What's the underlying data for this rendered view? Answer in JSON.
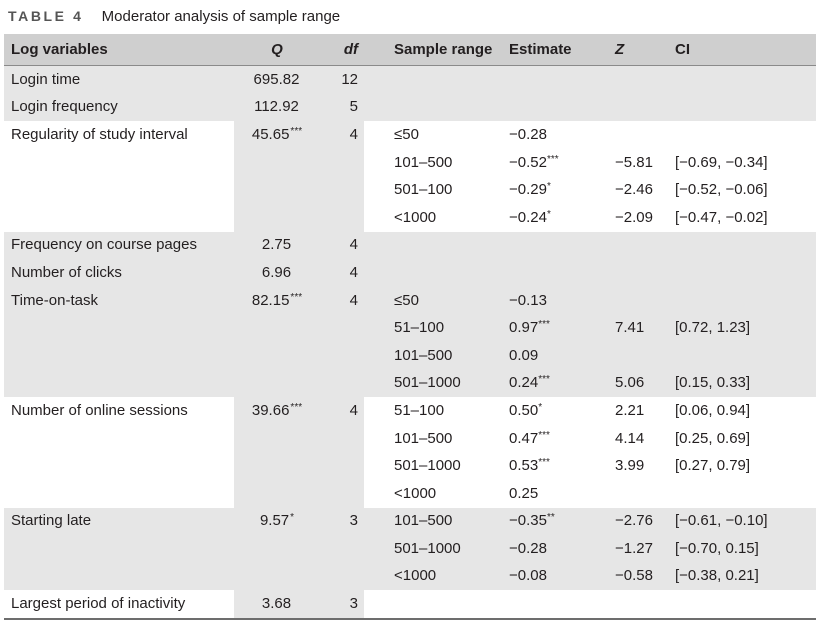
{
  "caption": {
    "label": "TABLE 4",
    "title": "Moderator analysis of sample range"
  },
  "columns": [
    "Log variables",
    "Q",
    "df",
    "Sample range",
    "Estimate",
    "Z",
    "CI"
  ],
  "rows": [
    {
      "variable": "Login time",
      "q": "695.82",
      "q_sig": "",
      "df": "12",
      "range": "",
      "estimate": "",
      "est_sig": "",
      "z": "",
      "ci": "",
      "shade": "full"
    },
    {
      "variable": "Login frequency",
      "q": "112.92",
      "q_sig": "",
      "df": "5",
      "range": "",
      "estimate": "",
      "est_sig": "",
      "z": "",
      "ci": "",
      "shade": "full"
    },
    {
      "variable": "Regularity of study interval",
      "q": "45.65",
      "q_sig": "***",
      "df": "4",
      "range": "≤50",
      "estimate": "−0.28",
      "est_sig": "",
      "z": "",
      "ci": "",
      "shade": "qdf"
    },
    {
      "variable": "",
      "q": "",
      "q_sig": "",
      "df": "",
      "range": "101–500",
      "estimate": "−0.52",
      "est_sig": "***",
      "z": "−5.81",
      "ci": "[−0.69, −0.34]",
      "shade": "qdf"
    },
    {
      "variable": "",
      "q": "",
      "q_sig": "",
      "df": "",
      "range": "501–100",
      "estimate": "−0.29",
      "est_sig": "*",
      "z": "−2.46",
      "ci": "[−0.52, −0.06]",
      "shade": "qdf"
    },
    {
      "variable": "",
      "q": "",
      "q_sig": "",
      "df": "",
      "range": "<1000",
      "estimate": "−0.24",
      "est_sig": "*",
      "z": "−2.09",
      "ci": "[−0.47, −0.02]",
      "shade": "qdf"
    },
    {
      "variable": "Frequency on course pages",
      "q": "2.75",
      "q_sig": "",
      "df": "4",
      "range": "",
      "estimate": "",
      "est_sig": "",
      "z": "",
      "ci": "",
      "shade": "full"
    },
    {
      "variable": "Number of clicks",
      "q": "6.96",
      "q_sig": "",
      "df": "4",
      "range": "",
      "estimate": "",
      "est_sig": "",
      "z": "",
      "ci": "",
      "shade": "full"
    },
    {
      "variable": "Time-on-task",
      "q": "82.15",
      "q_sig": "***",
      "df": "4",
      "range": "≤50",
      "estimate": "−0.13",
      "est_sig": "",
      "z": "",
      "ci": "",
      "shade": "full"
    },
    {
      "variable": "",
      "q": "",
      "q_sig": "",
      "df": "",
      "range": "51–100",
      "estimate": "0.97",
      "est_sig": "***",
      "z": "7.41",
      "ci": "[0.72, 1.23]",
      "shade": "full"
    },
    {
      "variable": "",
      "q": "",
      "q_sig": "",
      "df": "",
      "range": "101–500",
      "estimate": "0.09",
      "est_sig": "",
      "z": "",
      "ci": "",
      "shade": "full"
    },
    {
      "variable": "",
      "q": "",
      "q_sig": "",
      "df": "",
      "range": "501–1000",
      "estimate": "0.24",
      "est_sig": "***",
      "z": "5.06",
      "ci": "[0.15, 0.33]",
      "shade": "full"
    },
    {
      "variable": "Number of online sessions",
      "q": "39.66",
      "q_sig": "***",
      "df": "4",
      "range": "51–100",
      "estimate": "0.50",
      "est_sig": "*",
      "z": "2.21",
      "ci": "[0.06, 0.94]",
      "shade": "qdf"
    },
    {
      "variable": "",
      "q": "",
      "q_sig": "",
      "df": "",
      "range": "101–500",
      "estimate": "0.47",
      "est_sig": "***",
      "z": "4.14",
      "ci": "[0.25, 0.69]",
      "shade": "qdf"
    },
    {
      "variable": "",
      "q": "",
      "q_sig": "",
      "df": "",
      "range": "501–1000",
      "estimate": "0.53",
      "est_sig": "***",
      "z": "3.99",
      "ci": "[0.27, 0.79]",
      "shade": "qdf"
    },
    {
      "variable": "",
      "q": "",
      "q_sig": "",
      "df": "",
      "range": "<1000",
      "estimate": "0.25",
      "est_sig": "",
      "z": "",
      "ci": "",
      "shade": "qdf"
    },
    {
      "variable": "Starting late",
      "q": "9.57",
      "q_sig": "*",
      "df": "3",
      "range": "101–500",
      "estimate": "−0.35",
      "est_sig": "**",
      "z": "−2.76",
      "ci": "[−0.61, −0.10]",
      "shade": "full"
    },
    {
      "variable": "",
      "q": "",
      "q_sig": "",
      "df": "",
      "range": "501–1000",
      "estimate": "−0.28",
      "est_sig": "",
      "z": "−1.27",
      "ci": "[−0.70, 0.15]",
      "shade": "full"
    },
    {
      "variable": "",
      "q": "",
      "q_sig": "",
      "df": "",
      "range": "<1000",
      "estimate": "−0.08",
      "est_sig": "",
      "z": "−0.58",
      "ci": "[−0.38, 0.21]",
      "shade": "full"
    },
    {
      "variable": "Largest period of inactivity",
      "q": "3.68",
      "q_sig": "",
      "df": "3",
      "range": "",
      "estimate": "",
      "est_sig": "",
      "z": "",
      "ci": "",
      "shade": "qdf"
    }
  ]
}
